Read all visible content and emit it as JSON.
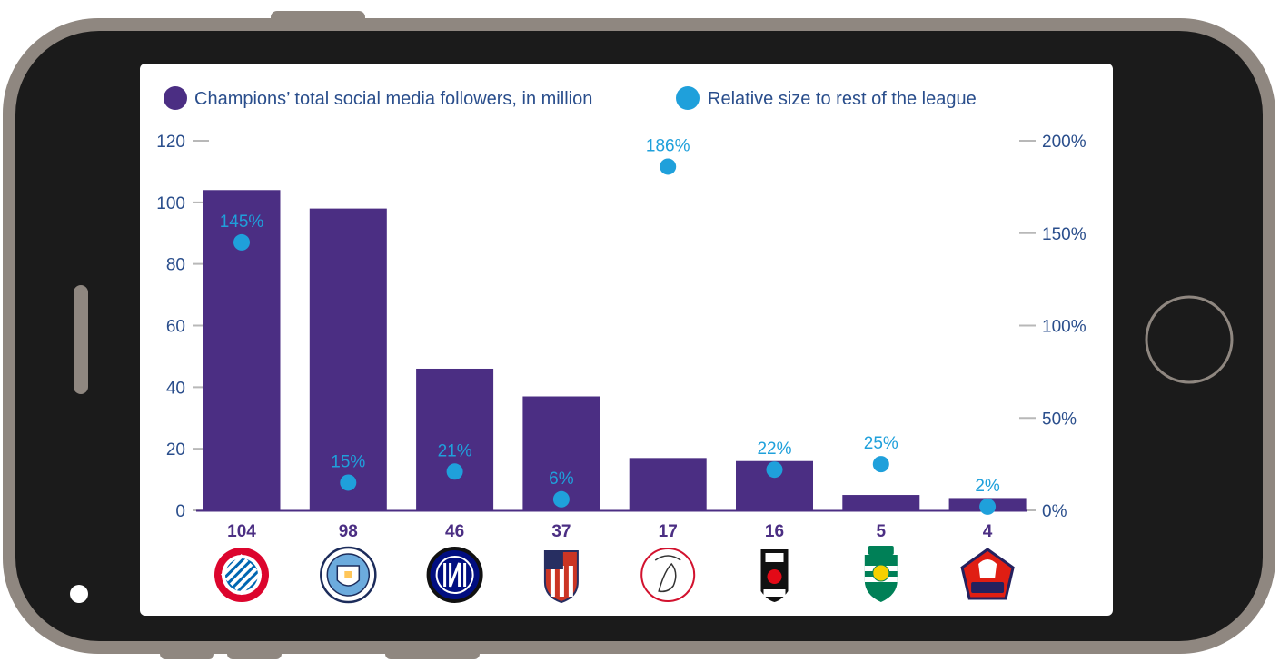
{
  "colors": {
    "phone_frame": "#8f8780",
    "phone_bezel": "#1b1b1b",
    "screen": "#ffffff",
    "bar": "#4b2e83",
    "dot": "#1fa0db",
    "axis_text": "#2a4e8c"
  },
  "legend": {
    "followers": "Champions’ total social media followers, in million",
    "relative": "Relative size to rest of the league"
  },
  "clubs": [
    {
      "label": "104",
      "pct_label": "145%",
      "icon": "bayern-munich-crest-icon"
    },
    {
      "label": "98",
      "pct_label": "15%",
      "icon": "manchester-city-crest-icon"
    },
    {
      "label": "46",
      "pct_label": "21%",
      "icon": "inter-milan-crest-icon"
    },
    {
      "label": "37",
      "pct_label": "6%",
      "icon": "atletico-madrid-crest-icon"
    },
    {
      "label": "17",
      "pct_label": "186%",
      "icon": "ajax-crest-icon"
    },
    {
      "label": "16",
      "pct_label": "22%",
      "icon": "besiktas-crest-icon"
    },
    {
      "label": "5",
      "pct_label": "25%",
      "icon": "sporting-cp-crest-icon"
    },
    {
      "label": "4",
      "pct_label": "2%",
      "icon": "lille-losc-crest-icon"
    }
  ],
  "chart_data": {
    "type": "bar",
    "categories": [
      "FC Bayern München",
      "Manchester City",
      "Inter",
      "Atlético de Madrid",
      "Ajax",
      "Beşiktaş",
      "Sporting CP",
      "LOSC Lille"
    ],
    "series": [
      {
        "name": "Champions’ total social media followers, in million",
        "type": "bar",
        "axis": "left",
        "values": [
          104,
          98,
          46,
          37,
          17,
          16,
          5,
          4
        ]
      },
      {
        "name": "Relative size to rest of the league",
        "type": "scatter",
        "axis": "right",
        "values": [
          145,
          15,
          21,
          6,
          186,
          22,
          25,
          2
        ]
      }
    ],
    "y_left": {
      "ticks": [
        "0",
        "20",
        "40",
        "60",
        "80",
        "100",
        "120"
      ],
      "lim": [
        0,
        120
      ]
    },
    "y_right": {
      "ticks": [
        "0%",
        "50%",
        "100%",
        "150%",
        "200%"
      ],
      "lim": [
        0,
        200
      ]
    },
    "legend_position": "top-left",
    "grid": false
  }
}
